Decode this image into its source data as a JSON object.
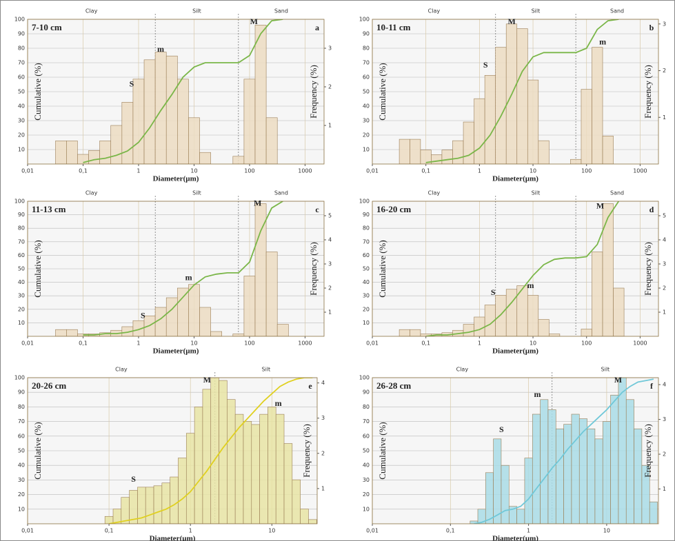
{
  "chart_data": [
    {
      "type": "combo",
      "title": "7-10 cm",
      "panel_label": "a",
      "xlabel": "Diameter(µm)",
      "ylabel": "Cumulative (%)",
      "y2label": "Frequency (%)",
      "log_x": true,
      "grid": true,
      "xlim": [
        0.01,
        2200
      ],
      "xticks": [
        {
          "value": 0.01,
          "label": "0,01"
        },
        {
          "value": 0.1,
          "label": "0,1"
        },
        1,
        10,
        100,
        1000
      ],
      "ylim": [
        0,
        100
      ],
      "yticks": [
        10,
        20,
        30,
        40,
        50,
        60,
        70,
        80,
        90,
        100
      ],
      "y2lim": [
        0,
        3.75
      ],
      "y2ticks": [
        1,
        2,
        3
      ],
      "zone_labels": [
        "Clay",
        "Silt",
        "Sand"
      ],
      "zone_bounds": [
        2,
        63
      ],
      "x": [
        0.04,
        0.063,
        0.1,
        0.158,
        0.251,
        0.398,
        0.631,
        1,
        1.585,
        2.512,
        3.981,
        6.31,
        10,
        15.85,
        25.12,
        39.81,
        63.1,
        100,
        158.5,
        251.2,
        398.1
      ],
      "series": [
        {
          "mark": "bar",
          "axis": "y2",
          "color": "#ecdcc2",
          "values": [
            0.6,
            0.6,
            0.25,
            0.35,
            0.6,
            1.0,
            1.6,
            2.2,
            2.7,
            2.9,
            2.8,
            2.2,
            1.2,
            0.3,
            0,
            0,
            0.2,
            2.2,
            3.6,
            1.2,
            0
          ]
        },
        {
          "mark": "line",
          "color": "#7ab648",
          "values": [
            null,
            null,
            1,
            3,
            4,
            6,
            9,
            15,
            25,
            37,
            48,
            60,
            67,
            70,
            70,
            70,
            70,
            75,
            90,
            99,
            100
          ]
        }
      ],
      "annotations": [
        {
          "text": "S",
          "x": 0.75,
          "y": 55
        },
        {
          "text": "m",
          "x": 2.5,
          "y": 79
        },
        {
          "text": "M",
          "x": 120,
          "y": 98
        }
      ]
    },
    {
      "type": "combo",
      "title": "10-11 cm",
      "panel_label": "b",
      "xlabel": "Diameter(µm)",
      "ylabel": "Cumulative (%)",
      "y2label": "Frequency (%)",
      "log_x": true,
      "grid": true,
      "xlim": [
        0.01,
        2200
      ],
      "xticks": [
        {
          "value": 0.01,
          "label": "0,01"
        },
        {
          "value": 0.1,
          "label": "0,1"
        },
        1,
        10,
        100,
        1000
      ],
      "ylim": [
        0,
        100
      ],
      "yticks": [
        10,
        20,
        30,
        40,
        50,
        60,
        70,
        80,
        90,
        100
      ],
      "y2lim": [
        0,
        3.1
      ],
      "y2ticks": [
        1,
        2,
        3
      ],
      "zone_labels": [
        "Clay",
        "Silt",
        "Sand"
      ],
      "zone_bounds": [
        2,
        63
      ],
      "x": [
        0.04,
        0.063,
        0.1,
        0.158,
        0.251,
        0.398,
        0.631,
        1,
        1.585,
        2.512,
        3.981,
        6.31,
        10,
        15.85,
        25.12,
        39.81,
        63.1,
        100,
        158.5,
        251.2,
        398.1
      ],
      "series": [
        {
          "mark": "bar",
          "axis": "y2",
          "color": "#ecdcc2",
          "values": [
            0.53,
            0.53,
            0.3,
            0.2,
            0.3,
            0.5,
            0.9,
            1.4,
            1.9,
            2.5,
            3.0,
            2.9,
            1.8,
            0.5,
            0,
            0,
            0.1,
            1.6,
            2.5,
            0.6,
            0
          ]
        },
        {
          "mark": "line",
          "color": "#7ab648",
          "values": [
            null,
            null,
            1,
            2,
            3,
            4,
            6,
            11,
            20,
            33,
            48,
            64,
            74,
            77,
            77,
            77,
            77,
            80,
            93,
            99,
            100
          ]
        }
      ],
      "annotations": [
        {
          "text": "S",
          "x": 1.3,
          "y": 68
        },
        {
          "text": "M",
          "x": 4,
          "y": 98
        },
        {
          "text": "m",
          "x": 200,
          "y": 84
        }
      ]
    },
    {
      "type": "combo",
      "title": "11-13 cm",
      "panel_label": "c",
      "xlabel": "Diameter(µm)",
      "ylabel": "Cumulative (%)",
      "y2label": "Frequency (%)",
      "log_x": true,
      "grid": true,
      "xlim": [
        0.01,
        2200
      ],
      "xticks": [
        {
          "value": 0.01,
          "label": "0,01"
        },
        {
          "value": 0.1,
          "label": "0,1"
        },
        1,
        10,
        100,
        1000
      ],
      "ylim": [
        0,
        100
      ],
      "yticks": [
        10,
        20,
        30,
        40,
        50,
        60,
        70,
        80,
        90,
        100
      ],
      "y2lim": [
        0,
        5.6
      ],
      "y2ticks": [
        1,
        2,
        3,
        4,
        5
      ],
      "zone_labels": [
        "Clay",
        "Silt",
        "Sand"
      ],
      "zone_bounds": [
        2,
        63
      ],
      "x": [
        0.04,
        0.063,
        0.1,
        0.158,
        0.251,
        0.398,
        0.631,
        1,
        1.585,
        2.512,
        3.981,
        6.31,
        10,
        15.85,
        25.12,
        39.81,
        63.1,
        100,
        158.5,
        251.2,
        398.1
      ],
      "series": [
        {
          "mark": "bar",
          "axis": "y2",
          "color": "#ecdcc2",
          "values": [
            0.28,
            0.28,
            0.1,
            0.1,
            0.15,
            0.25,
            0.4,
            0.65,
            0.85,
            1.2,
            1.6,
            2.0,
            2.15,
            1.2,
            0.2,
            0,
            0.1,
            2.5,
            5.5,
            3.5,
            0.5
          ]
        },
        {
          "mark": "line",
          "color": "#7ab648",
          "values": [
            null,
            null,
            1,
            1,
            2,
            2,
            3,
            5,
            8,
            13,
            20,
            29,
            38,
            44,
            46,
            47,
            47,
            55,
            78,
            95,
            100
          ]
        }
      ],
      "annotations": [
        {
          "text": "S",
          "x": 1.2,
          "y": 15
        },
        {
          "text": "m",
          "x": 8,
          "y": 43
        },
        {
          "text": "M",
          "x": 140,
          "y": 98
        }
      ]
    },
    {
      "type": "combo",
      "title": "16-20 cm",
      "panel_label": "d",
      "xlabel": "Diameter(µm)",
      "ylabel": "Cumulative (%)",
      "y2label": "Frequency (%)",
      "log_x": true,
      "grid": true,
      "xlim": [
        0.01,
        2200
      ],
      "xticks": [
        {
          "value": 0.01,
          "label": "0,01"
        },
        {
          "value": 0.1,
          "label": "0,1"
        },
        1,
        10,
        100,
        1000
      ],
      "ylim": [
        0,
        100
      ],
      "yticks": [
        10,
        20,
        30,
        40,
        50,
        60,
        70,
        80,
        90,
        100
      ],
      "y2lim": [
        0,
        5.6
      ],
      "y2ticks": [
        1,
        2,
        3,
        4,
        5
      ],
      "zone_labels": [
        "Clay",
        "Silt",
        "Sand"
      ],
      "zone_bounds": [
        2,
        63
      ],
      "x": [
        0.04,
        0.063,
        0.1,
        0.158,
        0.251,
        0.398,
        0.631,
        1,
        1.585,
        2.512,
        3.981,
        6.31,
        10,
        15.85,
        25.12,
        39.81,
        63.1,
        100,
        158.5,
        251.2,
        398.1
      ],
      "series": [
        {
          "mark": "bar",
          "axis": "y2",
          "color": "#ecdcc2",
          "values": [
            0.28,
            0.28,
            0.1,
            0.1,
            0.15,
            0.25,
            0.5,
            0.8,
            1.3,
            1.7,
            1.95,
            2.1,
            1.7,
            0.7,
            0.1,
            0,
            0,
            0.3,
            3.5,
            5.5,
            2.0
          ]
        },
        {
          "mark": "line",
          "color": "#7ab648",
          "values": [
            null,
            null,
            0,
            1,
            1,
            2,
            3,
            5,
            9,
            16,
            25,
            35,
            45,
            53,
            57,
            58,
            58,
            59,
            68,
            88,
            100
          ]
        }
      ],
      "annotations": [
        {
          "text": "S",
          "x": 1.8,
          "y": 32
        },
        {
          "text": "m",
          "x": 9,
          "y": 37
        },
        {
          "text": "M",
          "x": 180,
          "y": 96
        }
      ]
    },
    {
      "type": "combo",
      "title": "20-26 cm",
      "panel_label": "e",
      "xlabel": "Diameter(µm)",
      "ylabel": "Cumulative (%)",
      "y2label": "Frequency (%)",
      "log_x": true,
      "grid": true,
      "xlim": [
        0.01,
        36
      ],
      "xticks": [
        {
          "value": 0.01,
          "label": "0,01"
        },
        {
          "value": 0.1,
          "label": "0,1"
        },
        1,
        10
      ],
      "ylim": [
        0,
        100
      ],
      "yticks": [
        10,
        20,
        30,
        40,
        50,
        60,
        70,
        80,
        90,
        100
      ],
      "y2lim": [
        0,
        4.15
      ],
      "y2ticks": [
        1,
        2,
        3,
        4
      ],
      "zone_labels": [
        "Clay",
        "Silt"
      ],
      "zone_bounds": [
        2
      ],
      "x": [
        0.1,
        0.126,
        0.158,
        0.2,
        0.251,
        0.316,
        0.398,
        0.501,
        0.631,
        0.794,
        1,
        1.259,
        1.585,
        1.995,
        2.512,
        3.162,
        3.981,
        5.012,
        6.31,
        7.943,
        10,
        12.59,
        15.85,
        19.95,
        25.12,
        31.62
      ],
      "series": [
        {
          "mark": "bar",
          "axis": "y2",
          "color": "#e8e4a4",
          "values": [
            0.21,
            0.42,
            0.75,
            0.95,
            1.04,
            1.04,
            1.08,
            1.16,
            1.33,
            1.87,
            2.57,
            3.32,
            3.82,
            4.15,
            4.07,
            3.53,
            3.11,
            2.91,
            2.82,
            3.11,
            3.32,
            3.11,
            2.28,
            1.25,
            0.42,
            0.12
          ]
        },
        {
          "mark": "line",
          "color": "#e0d020",
          "values": [
            0,
            1,
            2,
            3,
            4,
            6,
            8,
            10,
            13,
            17,
            22,
            29,
            36,
            44,
            52,
            59,
            66,
            72,
            78,
            84,
            89,
            94,
            97,
            99,
            100,
            100
          ]
        }
      ],
      "annotations": [
        {
          "text": "S",
          "x": 0.2,
          "y": 30
        },
        {
          "text": "M",
          "x": 1.6,
          "y": 98
        },
        {
          "text": "m",
          "x": 12,
          "y": 82
        }
      ]
    },
    {
      "type": "combo",
      "title": "26-28 cm",
      "panel_label": "f",
      "xlabel": "Diameter(µm)",
      "ylabel": "Cumulative (%)",
      "y2label": "Frequency (%)",
      "log_x": true,
      "grid": true,
      "xlim": [
        0.01,
        46
      ],
      "xticks": [
        {
          "value": 0.01,
          "label": "0,01"
        },
        {
          "value": 0.1,
          "label": "0,1"
        },
        1,
        10
      ],
      "ylim": [
        0,
        100
      ],
      "yticks": [
        10,
        20,
        30,
        40,
        50,
        60,
        70,
        80,
        90,
        100
      ],
      "y2lim": [
        0,
        4.2
      ],
      "y2ticks": [
        1,
        2,
        3,
        4
      ],
      "zone_labels": [
        "Clay",
        "Silt"
      ],
      "zone_bounds": [
        2
      ],
      "x": [
        0.2,
        0.251,
        0.316,
        0.398,
        0.501,
        0.631,
        0.794,
        1,
        1.259,
        1.585,
        1.995,
        2.512,
        3.162,
        3.981,
        5.012,
        6.31,
        7.943,
        10,
        12.59,
        15.85,
        19.95,
        25.12,
        31.62,
        39.81
      ],
      "series": [
        {
          "mark": "bar",
          "axis": "y2",
          "color": "#a9dce6",
          "values": [
            0.08,
            0.42,
            1.47,
            2.44,
            1.68,
            0.5,
            0.42,
            1.89,
            3.15,
            3.57,
            3.28,
            2.73,
            2.86,
            3.15,
            3.02,
            2.73,
            2.44,
            2.94,
            3.7,
            4.2,
            3.57,
            2.73,
            1.68,
            0.63
          ]
        },
        {
          "mark": "line",
          "color": "#70c8d8",
          "values": [
            0,
            1,
            3,
            6,
            9,
            10,
            12,
            17,
            24,
            31,
            38,
            44,
            51,
            57,
            63,
            68,
            73,
            78,
            84,
            90,
            94,
            97,
            98,
            99
          ]
        }
      ],
      "annotations": [
        {
          "text": "S",
          "x": 0.45,
          "y": 64
        },
        {
          "text": "m",
          "x": 1.3,
          "y": 88
        },
        {
          "text": "M",
          "x": 14,
          "y": 98
        }
      ]
    }
  ]
}
